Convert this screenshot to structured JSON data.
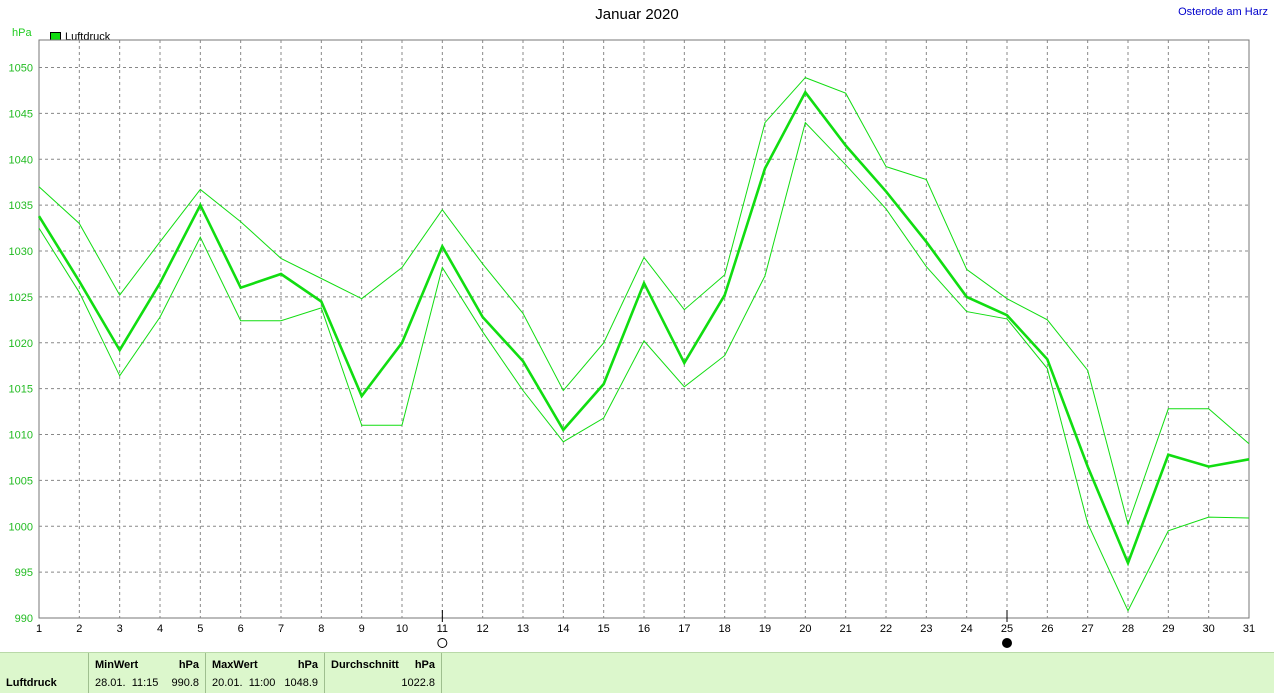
{
  "chart_data": {
    "type": "line",
    "title": "Januar 2020",
    "location": "Osterode am Harz",
    "ylabel": "hPa",
    "legend": "Luftdruck",
    "legend_color": "#11dd11",
    "ylim": [
      990,
      1053
    ],
    "yticks": [
      990,
      995,
      1000,
      1005,
      1010,
      1015,
      1020,
      1025,
      1030,
      1035,
      1040,
      1045,
      1050
    ],
    "x": [
      1,
      2,
      3,
      4,
      5,
      6,
      7,
      8,
      9,
      10,
      11,
      12,
      13,
      14,
      15,
      16,
      17,
      18,
      19,
      20,
      21,
      22,
      23,
      24,
      25,
      26,
      27,
      28,
      29,
      30,
      31
    ],
    "series": [
      {
        "name": "Luftdruck",
        "role": "mean",
        "values": [
          1033.8,
          1026.7,
          1019.2,
          1026.5,
          1035.0,
          1026.0,
          1027.5,
          1024.5,
          1014.2,
          1020.0,
          1030.5,
          1022.8,
          1018.0,
          1010.5,
          1015.5,
          1026.5,
          1017.8,
          1025.2,
          1039.0,
          1047.3,
          1041.5,
          1036.5,
          1031.0,
          1025.0,
          1023.0,
          1018.2,
          1006.5,
          996.0,
          1007.8,
          1006.5,
          1007.3
        ]
      },
      {
        "role": "max",
        "values": [
          1037.0,
          1033.0,
          1025.2,
          1031.0,
          1036.7,
          1033.2,
          1029.2,
          1027.0,
          1024.8,
          1028.2,
          1034.5,
          1028.6,
          1023.2,
          1014.8,
          1020.0,
          1029.3,
          1023.6,
          1027.4,
          1044.0,
          1048.9,
          1047.2,
          1039.2,
          1037.8,
          1028.0,
          1024.8,
          1022.5,
          1017.0,
          1000.2,
          1012.8,
          1012.8,
          1009.0
        ]
      },
      {
        "role": "min",
        "values": [
          1032.5,
          1025.5,
          1016.4,
          1022.8,
          1031.5,
          1022.4,
          1022.4,
          1023.8,
          1011.0,
          1011.0,
          1028.2,
          1021.2,
          1014.8,
          1009.2,
          1011.8,
          1020.2,
          1015.2,
          1018.6,
          1027.3,
          1044.0,
          1039.4,
          1034.6,
          1028.3,
          1023.4,
          1022.6,
          1017.2,
          1000.3,
          990.8,
          999.5,
          1001.0,
          1000.9
        ]
      }
    ],
    "moon_markers": [
      {
        "day": 11,
        "phase": "full"
      },
      {
        "day": 25,
        "phase": "new"
      }
    ],
    "grid": true
  },
  "footer": {
    "label": "Luftdruck",
    "min": {
      "header": "MinWert",
      "unit": "hPa",
      "time": "28.01.  11:15",
      "value": "990.8"
    },
    "max": {
      "header": "MaxWert",
      "unit": "hPa",
      "time": "20.01.  11:00",
      "value": "1048.9"
    },
    "avg": {
      "header": "Durchschnitt",
      "unit": "hPa",
      "value": "1022.8"
    }
  }
}
